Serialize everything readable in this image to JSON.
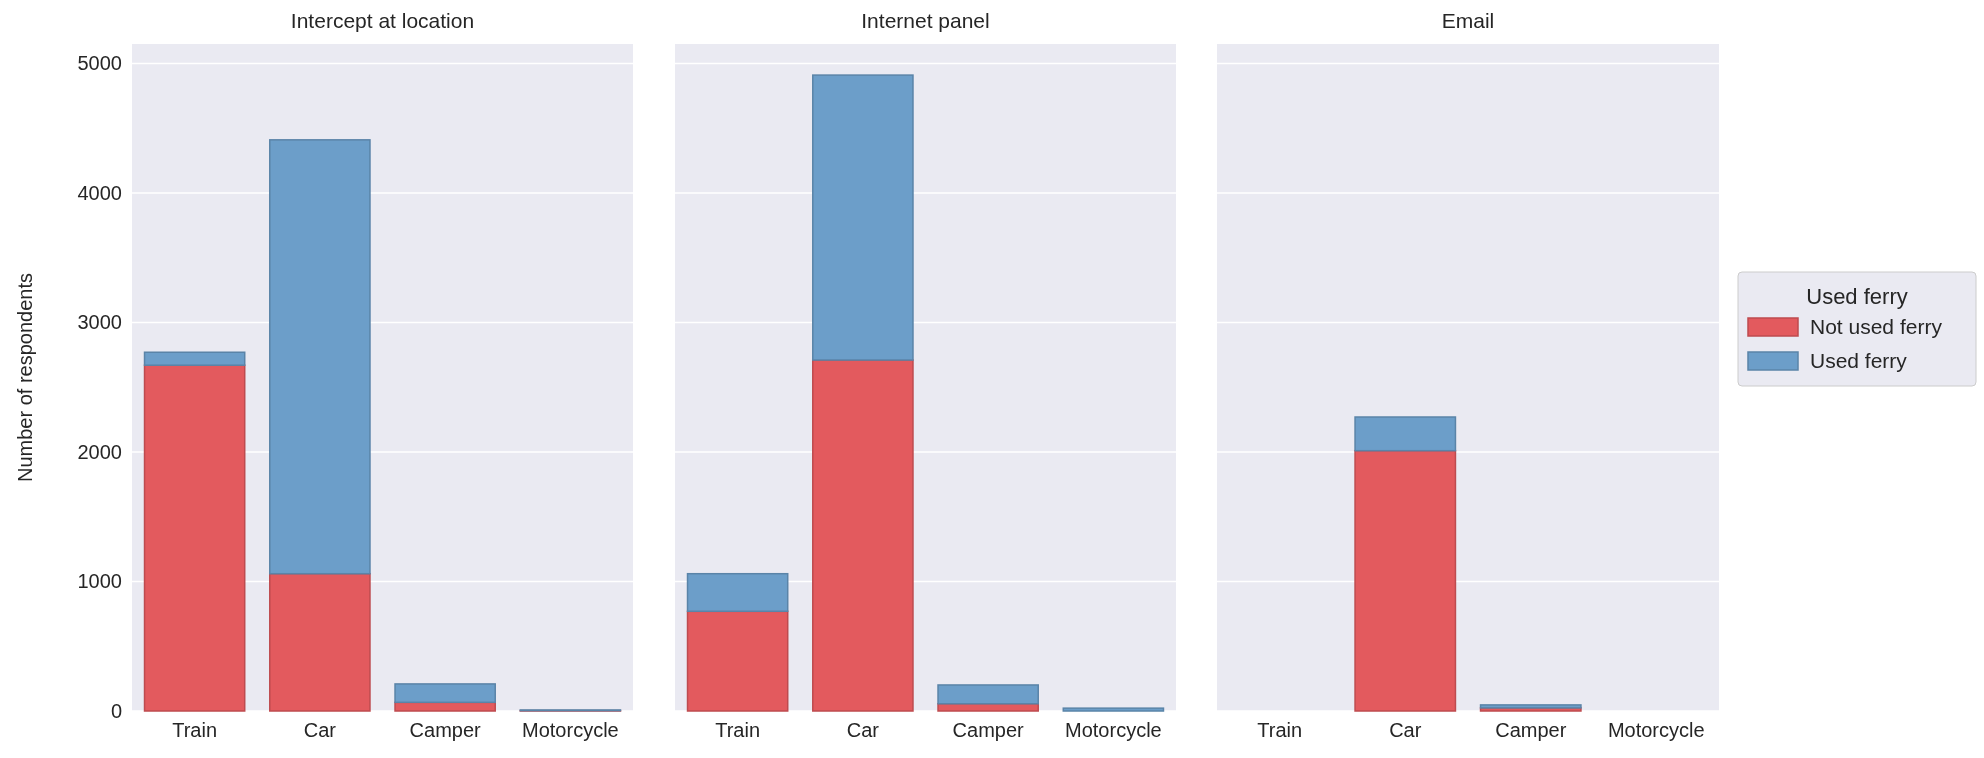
{
  "chart_data": [
    {
      "type": "bar",
      "title": "Intercept at location",
      "ylabel": "Number of respondents",
      "categories": [
        "Train",
        "Car",
        "Camper",
        "Motorcycle"
      ],
      "stacked": true,
      "ylim": [
        0,
        5150
      ],
      "yticks": [
        0,
        1000,
        2000,
        3000,
        4000,
        5000
      ],
      "grid": "y",
      "legend": false,
      "series": [
        {
          "color": "#e35a5e",
          "values": [
            2670,
            1060,
            67,
            3
          ]
        },
        {
          "color": "#6c9ec9",
          "values": [
            100,
            3350,
            142,
            5
          ]
        }
      ]
    },
    {
      "type": "bar",
      "title": "Internet panel",
      "categories": [
        "Train",
        "Car",
        "Camper",
        "Motorcycle"
      ],
      "stacked": true,
      "ylim": [
        0,
        5150
      ],
      "yticks": [
        0,
        1000,
        2000,
        3000,
        4000,
        5000
      ],
      "grid": "y",
      "legend": false,
      "tick_labels": "x",
      "series": [
        {
          "color": "#e35a5e",
          "values": [
            770,
            2710,
            56,
            null
          ]
        },
        {
          "color": "#6c9ec9",
          "values": [
            290,
            2200,
            145,
            22
          ]
        }
      ]
    },
    {
      "type": "bar",
      "title": "Email",
      "categories": [
        "Train",
        "Car",
        "Camper",
        "Motorcycle"
      ],
      "stacked": true,
      "ylim": [
        0,
        5150
      ],
      "yticks": [
        0,
        1000,
        2000,
        3000,
        4000,
        5000
      ],
      "grid": "y",
      "legend": "right",
      "legend_title": "Used ferry",
      "tick_labels": "x",
      "series": [
        {
          "name": "Not used ferry",
          "color": "#e35a5e",
          "values": [
            0,
            2010,
            24,
            0
          ]
        },
        {
          "name": "Used ferry",
          "color": "#6c9ec9",
          "values": [
            0,
            260,
            23,
            0
          ]
        }
      ]
    }
  ]
}
